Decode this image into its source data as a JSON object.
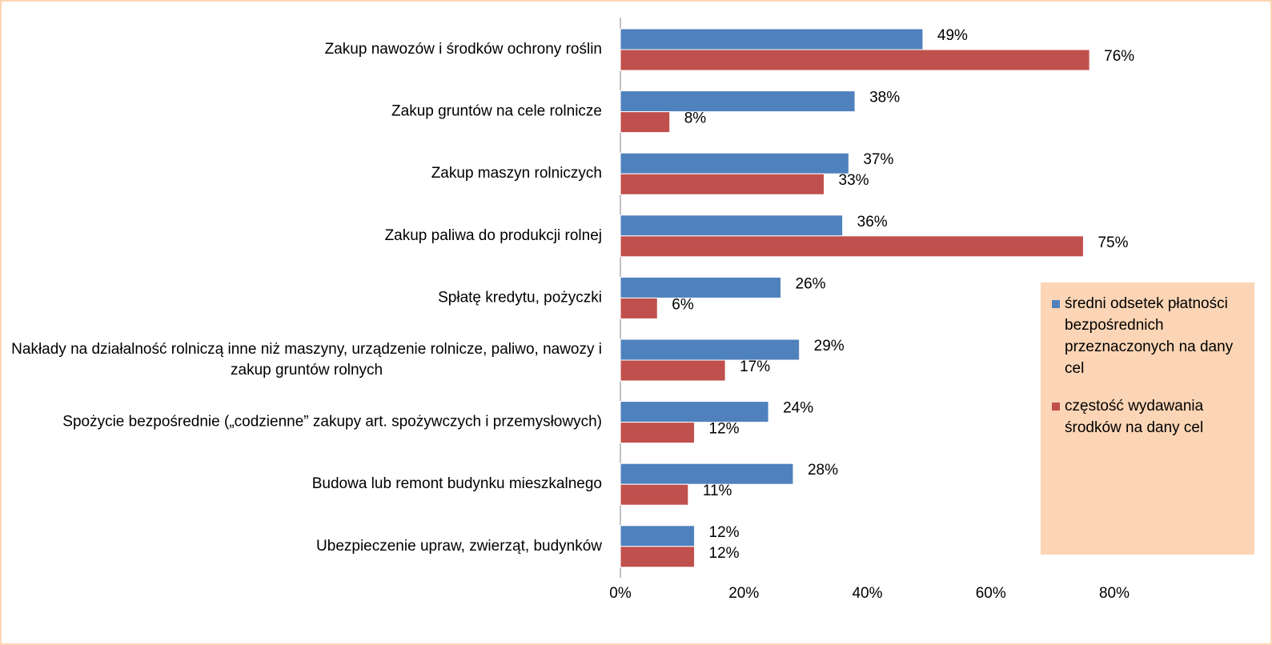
{
  "chart_data": {
    "type": "bar",
    "orientation": "horizontal",
    "categories": [
      "Zakup nawozów i środków ochrony roślin",
      "Zakup gruntów na cele rolnicze",
      "Zakup maszyn rolniczych",
      "Zakup paliwa do produkcji rolnej",
      "Spłatę kredytu, pożyczki",
      "Nakłady na działalność rolniczą inne niż maszyny, urządzenie rolnicze, paliwo, nawozy i zakup gruntów rolnych",
      "Spożycie bezpośrednie („codzienne” zakupy art. spożywczych i przemysłowych)",
      "Budowa lub remont budynku mieszkalnego",
      "Ubezpieczenie upraw, zwierząt, budynków"
    ],
    "series": [
      {
        "name": "średni odsetek płatności bezpośrednich przeznaczonych na dany cel",
        "color": "#4f81bd",
        "values": [
          49,
          38,
          37,
          36,
          26,
          29,
          24,
          28,
          12
        ],
        "value_labels": [
          "49%",
          "38%",
          "37%",
          "36%",
          "26%",
          "29%",
          "24%",
          "28%",
          "12%"
        ]
      },
      {
        "name": "częstość wydawania środków na dany cel",
        "color": "#c0504d",
        "values": [
          76,
          8,
          33,
          75,
          6,
          17,
          12,
          11,
          12
        ],
        "value_labels": [
          "76%",
          "8%",
          "33%",
          "75%",
          "6%",
          "17%",
          "12%",
          "11%",
          "12%"
        ]
      }
    ],
    "xlim": [
      0,
      80
    ],
    "xticks": [
      {
        "value": 0,
        "label": "0%"
      },
      {
        "value": 20,
        "label": "20%"
      },
      {
        "value": 40,
        "label": "40%"
      },
      {
        "value": 60,
        "label": "60%"
      },
      {
        "value": 80,
        "label": "80%"
      }
    ],
    "legend": "right"
  }
}
